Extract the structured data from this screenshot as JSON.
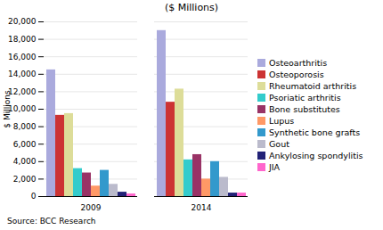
{
  "chart_data": {
    "type": "bar",
    "title": "($ Millions)",
    "ylabel": "$ Millions",
    "annotations": [
      "Source: BCC Research"
    ],
    "categories": [
      "2009",
      "2014"
    ],
    "series": [
      {
        "name": "Osteoarthritis",
        "color": "#aaaadd",
        "values": [
          14500,
          19000
        ]
      },
      {
        "name": "Osteoporosis",
        "color": "#cc3333",
        "values": [
          9300,
          10800
        ]
      },
      {
        "name": "Rheumatoid arthritis",
        "color": "#dddd99",
        "values": [
          9500,
          12300
        ]
      },
      {
        "name": "Psoriatic arthritis",
        "color": "#33cccc",
        "values": [
          3200,
          4200
        ]
      },
      {
        "name": "Bone substitutes",
        "color": "#993366",
        "values": [
          2700,
          4800
        ]
      },
      {
        "name": "Lupus",
        "color": "#ff9966",
        "values": [
          1200,
          2000
        ]
      },
      {
        "name": "Synthetic bone grafts",
        "color": "#3399cc",
        "values": [
          3000,
          4000
        ]
      },
      {
        "name": "Gout",
        "color": "#bbbbcc",
        "values": [
          1400,
          2200
        ]
      },
      {
        "name": "Ankylosing spondylitis",
        "color": "#222277",
        "values": [
          500,
          400
        ]
      },
      {
        "name": "JIA",
        "color": "#ff66cc",
        "values": [
          300,
          400
        ]
      }
    ],
    "ylim": [
      0,
      20000
    ],
    "yticks": [
      0,
      {
        "value": 2000,
        "label": "2,000"
      },
      {
        "value": 4000,
        "label": "4,000"
      },
      {
        "value": 6000,
        "label": "6,000"
      },
      {
        "value": 8000,
        "label": "8,000"
      },
      {
        "value": 10000,
        "label": "10,000"
      },
      {
        "value": 12000,
        "label": "12,000"
      },
      {
        "value": 14000,
        "label": "14,000"
      },
      {
        "value": 16000,
        "label": "16,000"
      },
      {
        "value": 18000,
        "label": "18,000"
      },
      {
        "value": 20000,
        "label": "20,000"
      }
    ],
    "grid": true,
    "legend": "right"
  }
}
